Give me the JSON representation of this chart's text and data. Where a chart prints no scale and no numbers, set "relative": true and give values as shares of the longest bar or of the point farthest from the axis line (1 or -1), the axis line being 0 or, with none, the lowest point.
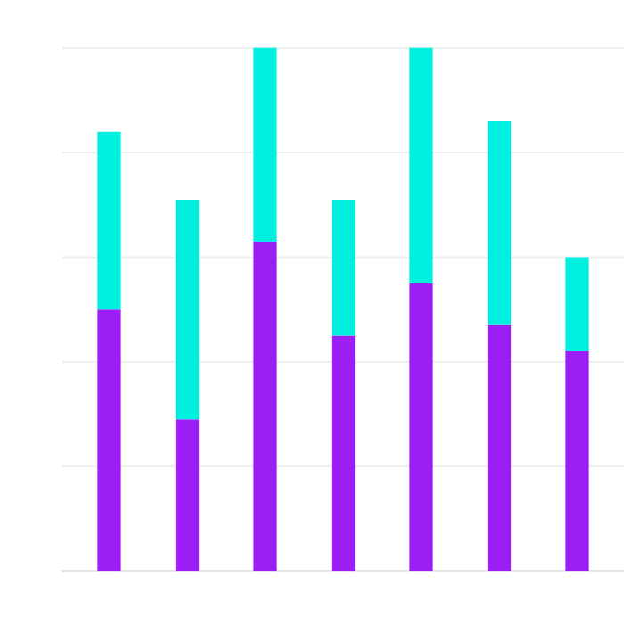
{
  "chart_data": {
    "type": "bar",
    "stacked": true,
    "relative": true,
    "grid": "y",
    "categories": [
      null,
      null,
      null,
      null,
      null,
      null,
      null
    ],
    "series": [
      {
        "color": "#9b1ff5",
        "values": [
          0.5,
          0.29,
          0.63,
          0.45,
          0.55,
          0.47,
          0.42
        ]
      },
      {
        "color": "#00f0e0",
        "values": [
          0.34,
          0.42,
          0.37,
          0.26,
          0.45,
          0.39,
          0.18
        ]
      }
    ]
  }
}
